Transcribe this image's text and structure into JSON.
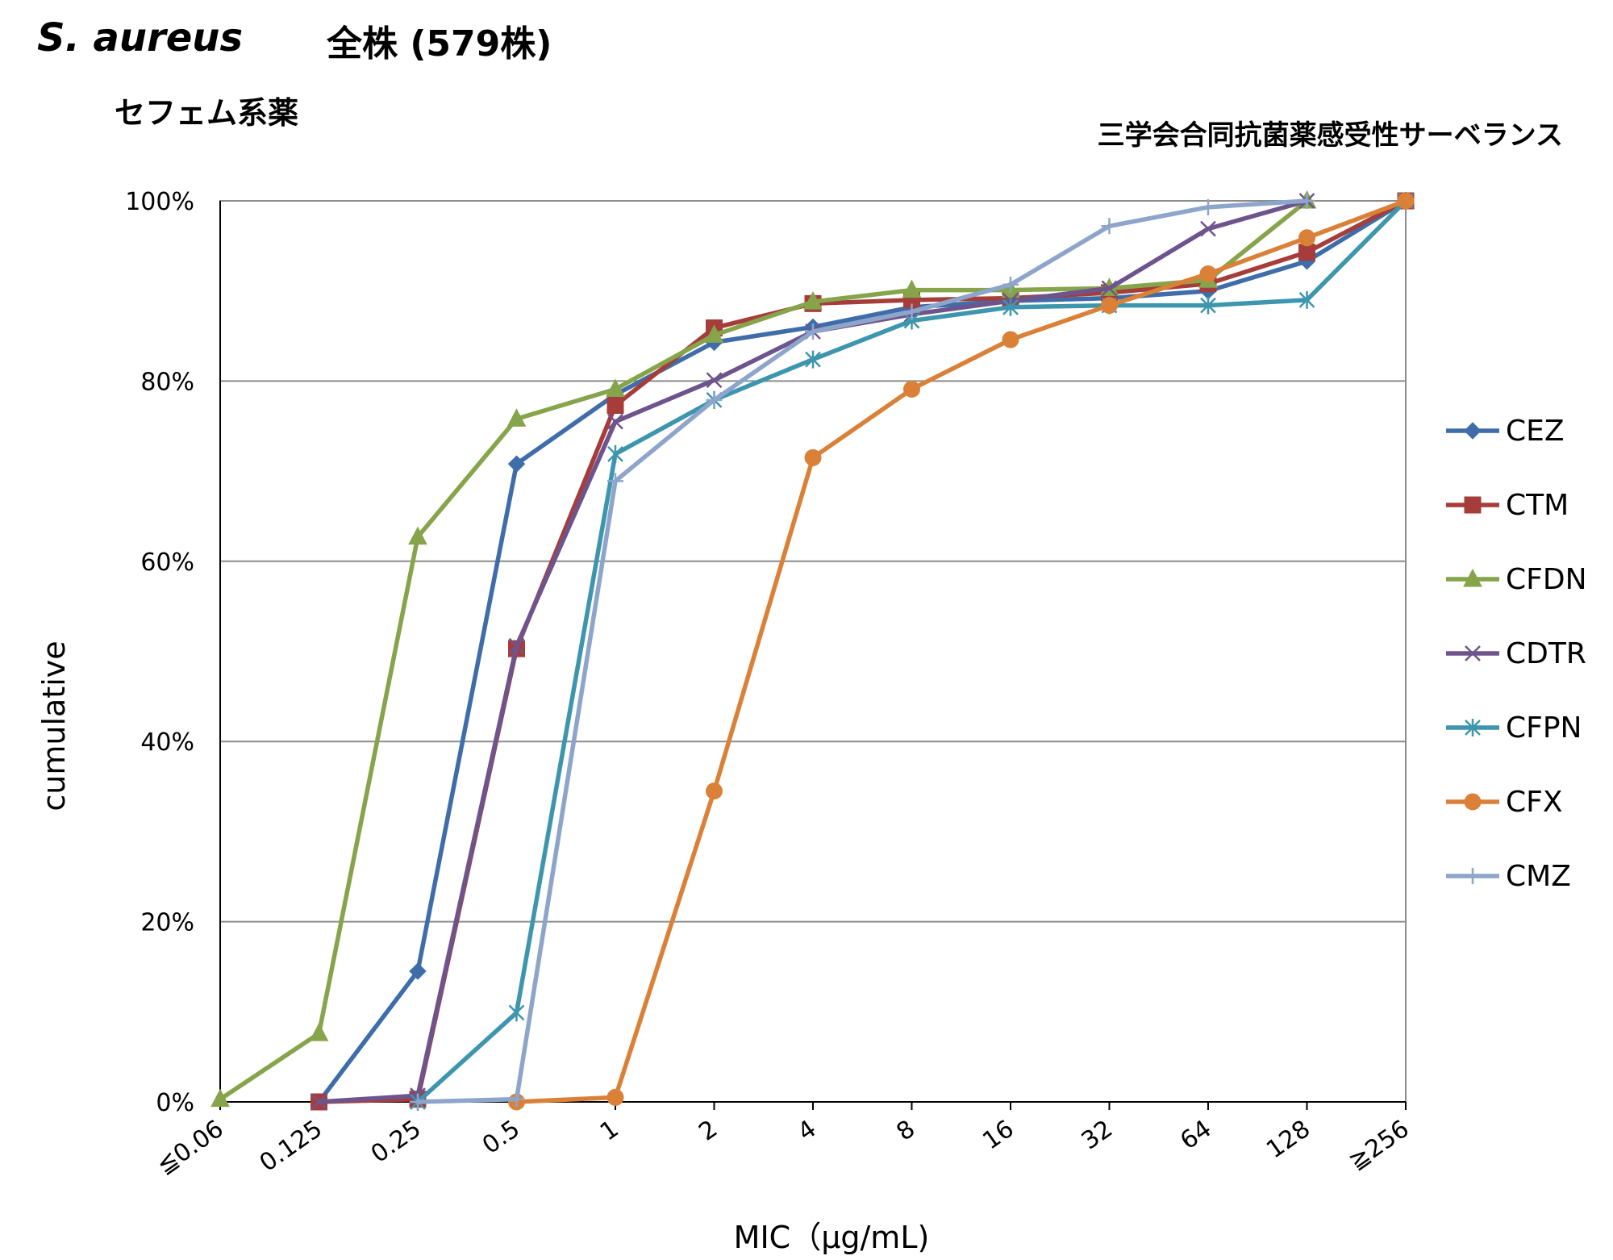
{
  "chart_data": {
    "type": "line",
    "title_organism": "S. aureus",
    "title_strains": "全株 (579株)",
    "subtitle": "セフェム系薬",
    "source": "三学会合同抗菌薬感受性サーベランス",
    "xlabel": "MIC（μg/mL)",
    "ylabel": "cumulative",
    "categories": [
      "≦0.06",
      "0.125",
      "0.25",
      "0.5",
      "1",
      "2",
      "4",
      "8",
      "16",
      "32",
      "64",
      "128",
      "≧256"
    ],
    "yticks": [
      "0%",
      "20%",
      "40%",
      "60%",
      "80%",
      "100%"
    ],
    "ylim": [
      0,
      100
    ],
    "grid": true,
    "legend_position": "right",
    "series": [
      {
        "name": "CEZ",
        "color": "#3F6DAA",
        "marker": "diamond",
        "values": [
          null,
          0,
          14.5,
          70.8,
          78.5,
          84.3,
          86.0,
          88.2,
          88.9,
          89.2,
          90.0,
          93.3,
          100
        ]
      },
      {
        "name": "CTM",
        "color": "#A63D3A",
        "marker": "square",
        "values": [
          null,
          0,
          0.3,
          50.3,
          77.3,
          85.9,
          88.6,
          89.0,
          89.2,
          89.8,
          90.8,
          94.3,
          100
        ]
      },
      {
        "name": "CFDN",
        "color": "#86A44A",
        "marker": "triangle",
        "values": [
          0.3,
          7.6,
          62.7,
          75.8,
          79.1,
          85.1,
          88.8,
          90.1,
          90.1,
          90.3,
          91.2,
          100,
          null
        ]
      },
      {
        "name": "CDTR",
        "color": "#6E548D",
        "marker": "x",
        "values": [
          null,
          0,
          0.7,
          50.6,
          75.5,
          80.1,
          85.5,
          87.4,
          88.9,
          90.3,
          96.9,
          100,
          null
        ]
      },
      {
        "name": "CFPN",
        "color": "#3D96AE",
        "marker": "asterisk",
        "values": [
          null,
          null,
          0,
          9.9,
          71.9,
          77.9,
          82.4,
          86.7,
          88.2,
          88.4,
          88.4,
          89.0,
          100
        ]
      },
      {
        "name": "CFX",
        "color": "#DA8137",
        "marker": "circle",
        "values": [
          null,
          null,
          null,
          0,
          0.5,
          34.5,
          71.5,
          79.1,
          84.6,
          88.4,
          91.9,
          95.9,
          100
        ]
      },
      {
        "name": "CMZ",
        "color": "#8EA5CB",
        "marker": "plus",
        "values": [
          null,
          null,
          0,
          0.3,
          68.9,
          77.9,
          85.5,
          87.7,
          90.7,
          97.2,
          99.3,
          100,
          null
        ]
      }
    ]
  }
}
